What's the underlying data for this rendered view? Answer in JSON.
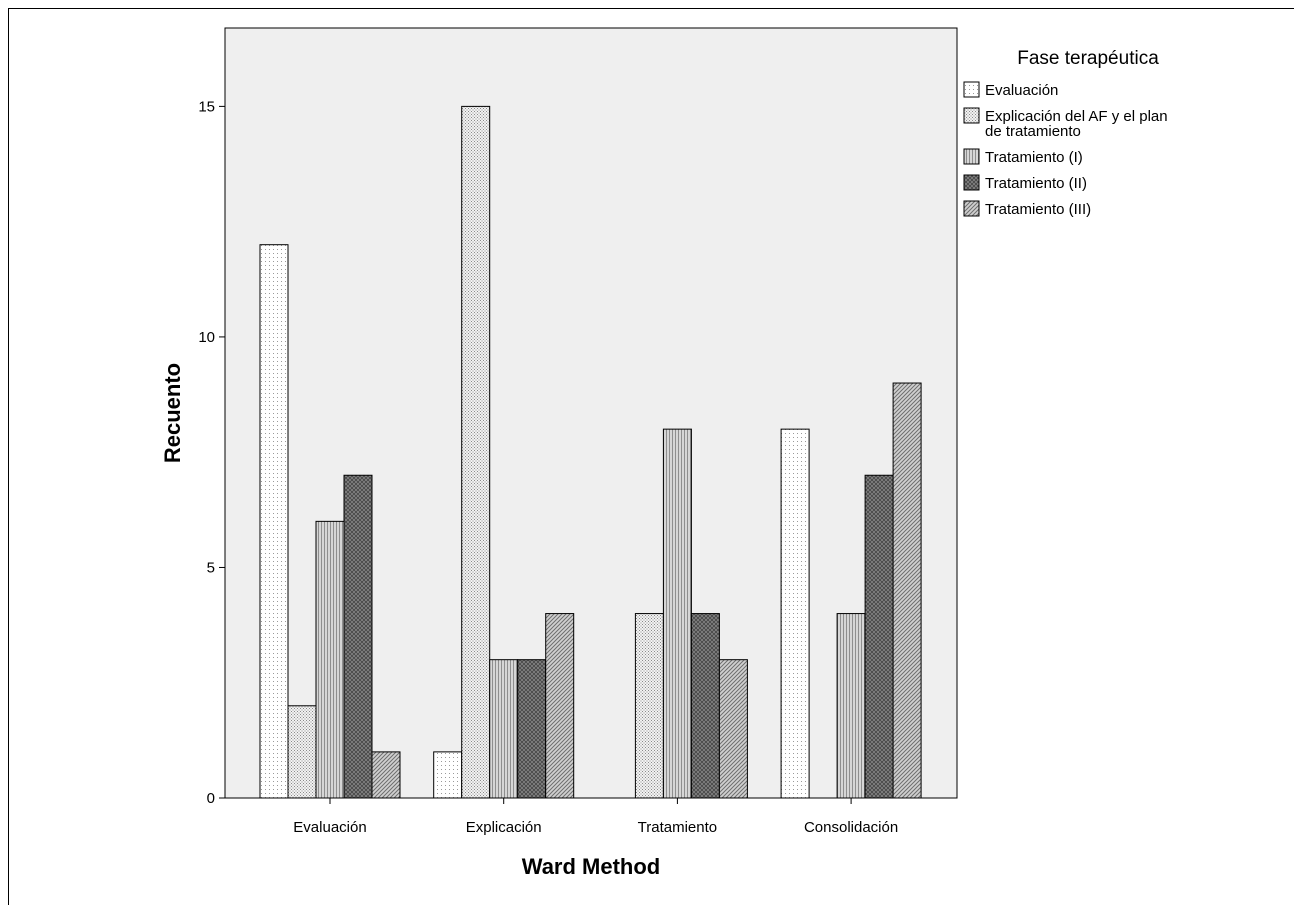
{
  "chart_data": {
    "type": "bar",
    "xlabel": "Ward Method",
    "ylabel": "Recuento",
    "categories": [
      "Evaluación",
      "Explicación",
      "Tratamiento",
      "Consolidación"
    ],
    "ylim": [
      0,
      16.7
    ],
    "yticks": [
      0,
      5,
      10,
      15
    ],
    "legend_title": "Fase terapéutica",
    "legend_position": "right",
    "grid": false,
    "series": [
      {
        "name": "Evaluación",
        "legend_lines": [
          "Evaluación"
        ],
        "values": [
          12,
          1,
          0,
          8
        ],
        "pattern": "dots-light"
      },
      {
        "name": "Explicación del AF y el plan de tratamiento",
        "legend_lines": [
          "Explicación del AF y el plan",
          "de tratamiento"
        ],
        "values": [
          2,
          15,
          4,
          0
        ],
        "pattern": "dots-dense"
      },
      {
        "name": "Tratamiento (I)",
        "legend_lines": [
          "Tratamiento (I)"
        ],
        "values": [
          6,
          3,
          8,
          4
        ],
        "pattern": "vertical-lines"
      },
      {
        "name": "Tratamiento (II)",
        "legend_lines": [
          "Tratamiento (II)"
        ],
        "values": [
          7,
          3,
          4,
          7
        ],
        "pattern": "crosshatch"
      },
      {
        "name": "Tratamiento (III)",
        "legend_lines": [
          "Tratamiento (III)"
        ],
        "values": [
          1,
          4,
          3,
          9
        ],
        "pattern": "diagonal"
      }
    ],
    "colors": {
      "plot_background": "#efefef",
      "bar_stroke": "#000000"
    }
  }
}
